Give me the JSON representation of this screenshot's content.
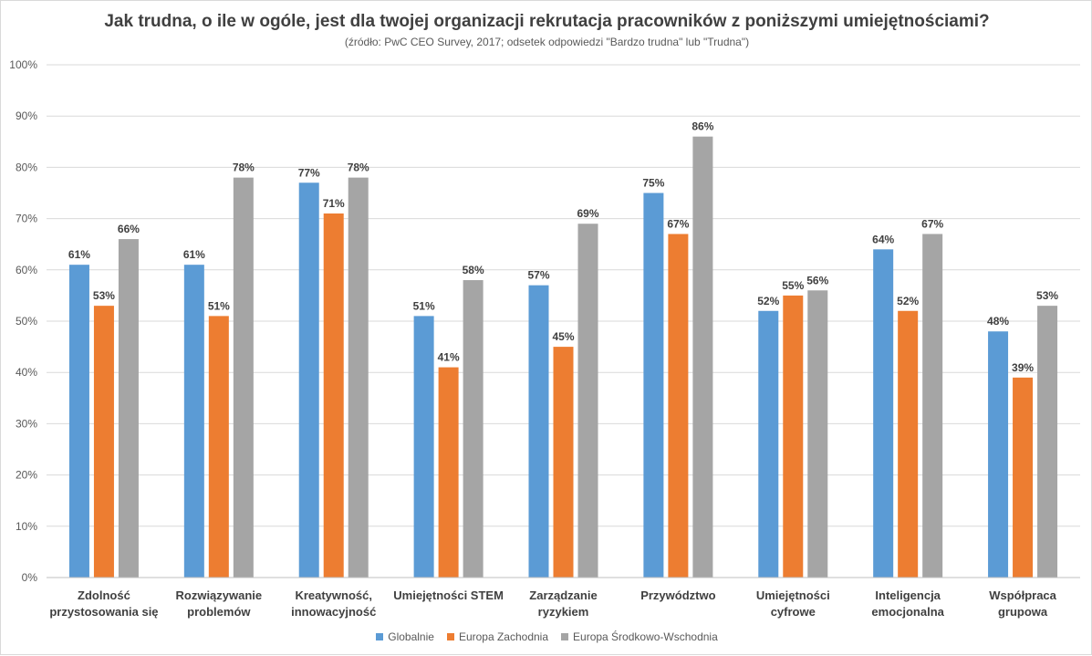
{
  "chart_data": {
    "type": "bar",
    "title": "Jak trudna, o ile w ogóle, jest dla twojej organizacji rekrutacja pracowników z poniższymi umiejętnościami?",
    "subtitle": "(źródło: PwC CEO Survey, 2017; odsetek odpowiedzi \"Bardzo trudna\" lub \"Trudna\")",
    "categories": [
      [
        "Zdolność",
        "przystosowania się"
      ],
      [
        "Rozwiązywanie",
        "problemów"
      ],
      [
        "Kreatywność,",
        "innowacyjność"
      ],
      [
        "Umiejętności STEM"
      ],
      [
        "Zarządzanie",
        "ryzykiem"
      ],
      [
        "Przywództwo"
      ],
      [
        "Umiejętności",
        "cyfrowe"
      ],
      [
        "Inteligencja",
        "emocjonalna"
      ],
      [
        "Współpraca",
        "grupowa"
      ]
    ],
    "series": [
      {
        "name": "Globalnie",
        "color": "#5b9bd5",
        "values": [
          61,
          61,
          77,
          51,
          57,
          75,
          52,
          64,
          48
        ]
      },
      {
        "name": "Europa Zachodnia",
        "color": "#ed7d31",
        "values": [
          53,
          51,
          71,
          41,
          45,
          67,
          55,
          52,
          39
        ]
      },
      {
        "name": "Europa Środkowo-Wschodnia",
        "color": "#a5a5a5",
        "values": [
          66,
          78,
          78,
          58,
          69,
          86,
          56,
          67,
          53
        ]
      }
    ],
    "yticks": [
      "0%",
      "10%",
      "20%",
      "30%",
      "40%",
      "50%",
      "60%",
      "70%",
      "80%",
      "90%",
      "100%"
    ],
    "ylim": [
      0,
      100
    ],
    "value_suffix": "%",
    "grid": true,
    "legend_position": "bottom"
  }
}
